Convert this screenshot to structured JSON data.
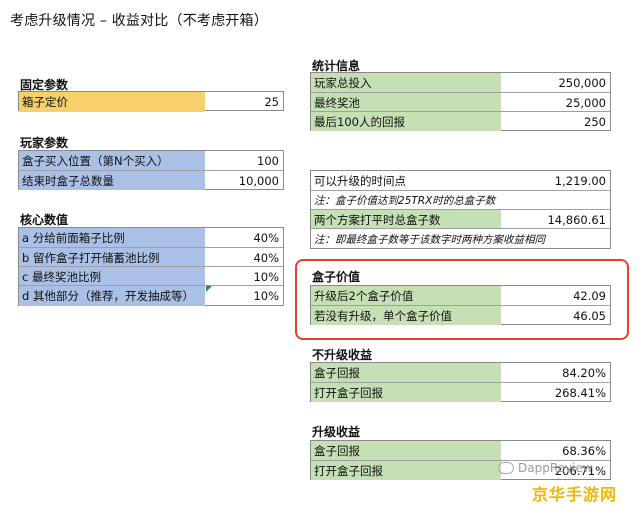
{
  "title": "考虑升级情况 – 收益对比（不考虑开箱）",
  "fixed": {
    "heading": "固定参数",
    "rows": [
      {
        "label": "箱子定价",
        "value": "25"
      }
    ]
  },
  "player": {
    "heading": "玩家参数",
    "rows": [
      {
        "label": "盒子买入位置（第N个买入）",
        "value": "100"
      },
      {
        "label": "结束时盒子总数量",
        "value": "10,000"
      }
    ]
  },
  "core": {
    "heading": "核心数值",
    "rows": [
      {
        "label": "a 分给前面箱子比例",
        "value": "40%"
      },
      {
        "label": "b 留作盒子打开储蓄池比例",
        "value": "40%"
      },
      {
        "label": "c 最终奖池比例",
        "value": "10%"
      },
      {
        "label": "d 其他部分（推荐，开发抽成等）",
        "value": "10%"
      }
    ]
  },
  "stats": {
    "heading": "统计信息",
    "rows": [
      {
        "label": "玩家总投入",
        "value": "250,000"
      },
      {
        "label": "最终奖池",
        "value": "25,000"
      },
      {
        "label": "最后100人的回报",
        "value": "250"
      }
    ]
  },
  "upgrade_time": {
    "rows": [
      {
        "label": "可以升级的时间点",
        "value": "1,219.00"
      },
      {
        "label": "注：盒子价值达到25TRX时的总盒子数",
        "value": ""
      },
      {
        "label": "两个方案打平时总盒子数",
        "value": "14,860.61"
      },
      {
        "label": "注：即最终盒子数等于该数字时两种方案收益相同",
        "value": ""
      }
    ]
  },
  "box_value": {
    "heading": "盒子价值",
    "rows": [
      {
        "label": "升级后2个盒子价值",
        "value": "42.09"
      },
      {
        "label": "若没有升级，单个盒子价值",
        "value": "46.05"
      }
    ]
  },
  "no_upgrade": {
    "heading": "不升级收益",
    "rows": [
      {
        "label": "盒子回报",
        "value": "84.20%"
      },
      {
        "label": "打开盒子回报",
        "value": "268.41%"
      }
    ]
  },
  "upgrade": {
    "heading": "升级收益",
    "rows": [
      {
        "label": "盒子回报",
        "value": "68.36%"
      },
      {
        "label": "打开盒子回报",
        "value": "206.71%"
      }
    ]
  },
  "watermark": {
    "text": "DappReview"
  },
  "site_logo": {
    "text": "京华手游网"
  },
  "colors": {
    "yellow": "#f7cf6b",
    "blue": "#aac0e6",
    "green": "#c5e0b4",
    "highlight_border": "#e0452b"
  }
}
